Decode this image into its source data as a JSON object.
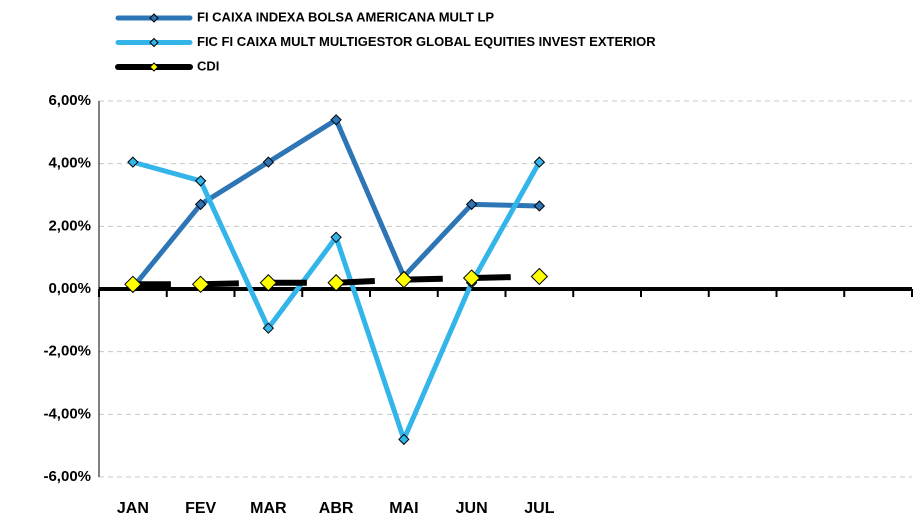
{
  "chart_data": {
    "type": "line",
    "categories": [
      "JAN",
      "FEV",
      "MAR",
      "ABR",
      "MAI",
      "JUN",
      "JUL",
      null,
      null,
      null,
      null,
      null
    ],
    "series": [
      {
        "name": "FI CAIXA INDEXA BOLSA AMERICANA MULT LP",
        "color": "#2e75b6",
        "values": [
          0.05,
          2.7,
          4.05,
          5.4,
          0.4,
          2.7,
          2.65,
          null,
          null,
          null,
          null,
          null
        ]
      },
      {
        "name": "FIC FI CAIXA MULT MULTIGESTOR GLOBAL EQUITIES INVEST EXTERIOR",
        "color": "#33b5ea",
        "values": [
          4.05,
          3.45,
          -1.25,
          1.65,
          -4.8,
          0.2,
          4.05,
          null,
          null,
          null,
          null,
          null
        ]
      },
      {
        "name": "CDI",
        "color": "#000000",
        "values": [
          0.15,
          0.15,
          0.2,
          0.2,
          0.3,
          0.35,
          0.4,
          null,
          null,
          null,
          null,
          null
        ]
      }
    ],
    "ylim": [
      -6,
      6
    ],
    "yticks": [
      {
        "value": -6,
        "label": "-6,00%"
      },
      {
        "value": -4,
        "label": "-4,00%"
      },
      {
        "value": -2,
        "label": "-2,00%"
      },
      {
        "value": 0,
        "label": "0,00%"
      },
      {
        "value": 2,
        "label": "2,00%"
      },
      {
        "value": 4,
        "label": "4,00%"
      },
      {
        "value": 6,
        "label": "6,00%"
      }
    ],
    "grid": true,
    "legend": "top"
  }
}
